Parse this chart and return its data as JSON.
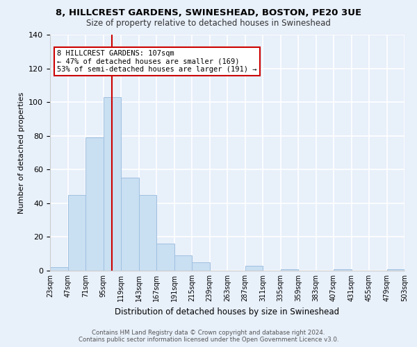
{
  "title1": "8, HILLCREST GARDENS, SWINESHEAD, BOSTON, PE20 3UE",
  "title2": "Size of property relative to detached houses in Swineshead",
  "xlabel": "Distribution of detached houses by size in Swineshead",
  "ylabel": "Number of detached properties",
  "bin_edges": [
    23,
    47,
    71,
    95,
    119,
    143,
    167,
    191,
    215,
    239,
    263,
    287,
    311,
    335,
    359,
    383,
    407,
    431,
    455,
    479,
    503
  ],
  "bar_heights": [
    2,
    45,
    79,
    103,
    55,
    45,
    16,
    9,
    5,
    0,
    0,
    3,
    0,
    1,
    0,
    0,
    1,
    0,
    0,
    1
  ],
  "bar_color": "#c9dff2",
  "bar_edgecolor": "#a0c0e0",
  "vline_x": 107,
  "vline_color": "#cc0000",
  "ylim": [
    0,
    140
  ],
  "yticks": [
    0,
    20,
    40,
    60,
    80,
    100,
    120,
    140
  ],
  "annotation_title": "8 HILLCREST GARDENS: 107sqm",
  "annotation_line1": "← 47% of detached houses are smaller (169)",
  "annotation_line2": "53% of semi-detached houses are larger (191) →",
  "footer1": "Contains HM Land Registry data © Crown copyright and database right 2024.",
  "footer2": "Contains public sector information licensed under the Open Government Licence v3.0.",
  "tick_labels": [
    "23sqm",
    "47sqm",
    "71sqm",
    "95sqm",
    "119sqm",
    "143sqm",
    "167sqm",
    "191sqm",
    "215sqm",
    "239sqm",
    "263sqm",
    "287sqm",
    "311sqm",
    "335sqm",
    "359sqm",
    "383sqm",
    "407sqm",
    "431sqm",
    "455sqm",
    "479sqm",
    "503sqm"
  ],
  "background_color": "#e8f0fa"
}
